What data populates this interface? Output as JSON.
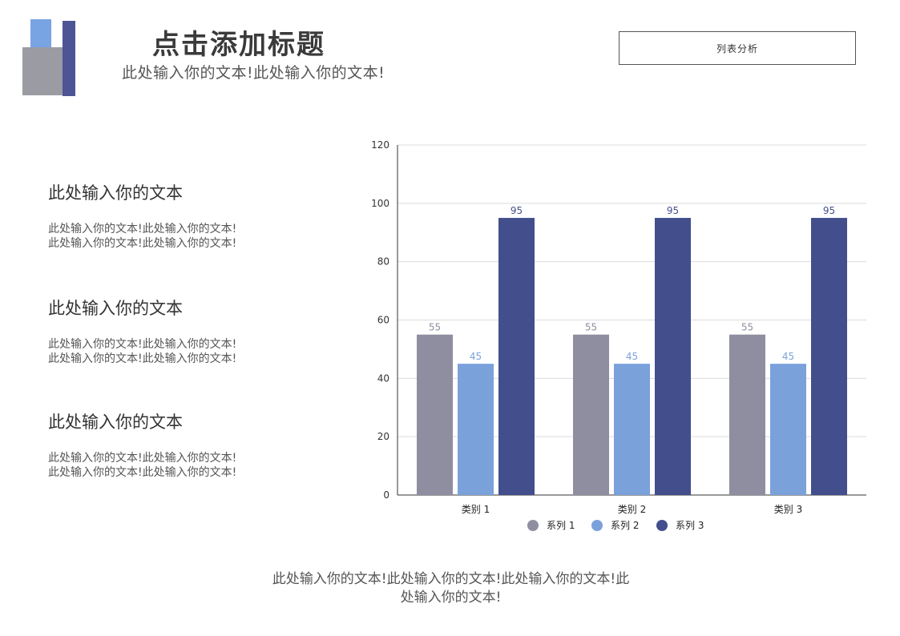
{
  "header": {
    "title": "点击添加标题",
    "subtitle": "此处输入你的文本!此处输入你的文本!",
    "button_label": "列表分析"
  },
  "blocks": [
    {
      "heading": "此处输入你的文本",
      "line1": "此处输入你的文本!此处输入你的文本!",
      "line2": "此处输入你的文本!此处输入你的文本!"
    },
    {
      "heading": "此处输入你的文本",
      "line1": "此处输入你的文本!此处输入你的文本!",
      "line2": "此处输入你的文本!此处输入你的文本!"
    },
    {
      "heading": "此处输入你的文本",
      "line1": "此处输入你的文本!此处输入你的文本!",
      "line2": "此处输入你的文本!此处输入你的文本!"
    }
  ],
  "footer": {
    "line1": "此处输入你的文本!此处输入你的文本!此处输入你的文本!此",
    "line2": "处输入你的文本!"
  },
  "colors": {
    "logo_blue": "#79a4e4",
    "logo_navy": "#4d5595",
    "logo_grey": "#9a9ba3",
    "series1": "#8e8ea0",
    "series2": "#7ba1db",
    "series3": "#434e8c"
  },
  "chart_data": {
    "type": "bar",
    "categories": [
      "类别 1",
      "类别 2",
      "类别 3"
    ],
    "series": [
      {
        "name": "系列 1",
        "values": [
          55,
          55,
          55
        ],
        "color": "#8e8ea0"
      },
      {
        "name": "系列 2",
        "values": [
          45,
          45,
          45
        ],
        "color": "#7ba1db"
      },
      {
        "name": "系列 3",
        "values": [
          95,
          95,
          95
        ],
        "color": "#434e8c"
      }
    ],
    "ylim": [
      0,
      120
    ],
    "yticks": [
      0,
      20,
      40,
      60,
      80,
      100,
      120
    ],
    "grid": true,
    "legend": "bottom",
    "data_labels": true
  }
}
